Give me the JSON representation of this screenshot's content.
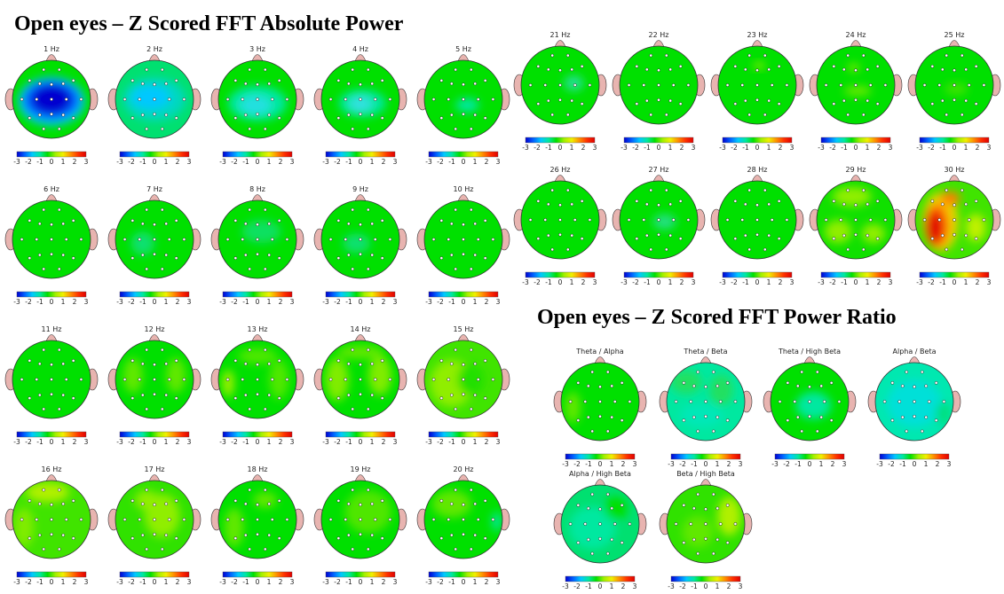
{
  "titles": {
    "absolute": "Open eyes – Z Scored FFT Absolute Power",
    "ratio": "Open eyes – Z Scored FFT Power Ratio"
  },
  "colorbar": {
    "ticks": [
      "-3",
      "-2",
      "-1",
      "0",
      "1",
      "2",
      "3"
    ],
    "range": [
      -3,
      3
    ],
    "stops": [
      "#0000d0",
      "#0060ff",
      "#00c8ff",
      "#00e8a0",
      "#00e000",
      "#a0f000",
      "#f0f000",
      "#ff9000",
      "#ff3000",
      "#e00000"
    ]
  },
  "maps": [
    {
      "label": "1 Hz",
      "base": "#00e000",
      "blobs": [
        {
          "dx": 0,
          "dy": 0.05,
          "rx": 0.85,
          "ry": 0.62,
          "color": "#00c8ff",
          "op": 1
        },
        {
          "dx": 0,
          "dy": 0.02,
          "rx": 0.72,
          "ry": 0.5,
          "color": "#0060ff",
          "op": 1
        },
        {
          "dx": 0,
          "dy": 0.0,
          "rx": 0.52,
          "ry": 0.38,
          "color": "#0000d0",
          "op": 1
        }
      ]
    },
    {
      "label": "2 Hz",
      "base": "#00e070",
      "blobs": [
        {
          "dx": 0,
          "dy": 0.0,
          "rx": 0.8,
          "ry": 0.55,
          "color": "#00d8c0",
          "op": 1
        },
        {
          "dx": -0.1,
          "dy": -0.05,
          "rx": 0.5,
          "ry": 0.3,
          "color": "#00c8ff",
          "op": 1
        }
      ]
    },
    {
      "label": "3 Hz",
      "base": "#00e000",
      "blobs": [
        {
          "dx": 0,
          "dy": 0.1,
          "rx": 0.75,
          "ry": 0.45,
          "color": "#00e8a0",
          "op": 1
        },
        {
          "dx": -0.05,
          "dy": 0.15,
          "rx": 0.4,
          "ry": 0.25,
          "color": "#20e0e0",
          "op": 1
        }
      ]
    },
    {
      "label": "4 Hz",
      "base": "#00e000",
      "blobs": [
        {
          "dx": 0.05,
          "dy": 0.1,
          "rx": 0.6,
          "ry": 0.35,
          "color": "#00e8a0",
          "op": 1
        },
        {
          "dx": 0.0,
          "dy": 0.12,
          "rx": 0.28,
          "ry": 0.2,
          "color": "#30e0e0",
          "op": 1
        }
      ]
    },
    {
      "label": "5 Hz",
      "base": "#00e000",
      "blobs": [
        {
          "dx": 0.1,
          "dy": 0.15,
          "rx": 0.3,
          "ry": 0.18,
          "color": "#00e8a0",
          "op": 1
        }
      ]
    },
    {
      "label": "6 Hz",
      "base": "#00e000",
      "blobs": []
    },
    {
      "label": "7 Hz",
      "base": "#00e000",
      "blobs": [
        {
          "dx": -0.3,
          "dy": 0.1,
          "rx": 0.3,
          "ry": 0.3,
          "color": "#10e070",
          "op": 1
        }
      ]
    },
    {
      "label": "8 Hz",
      "base": "#00e000",
      "blobs": [
        {
          "dx": 0.1,
          "dy": -0.2,
          "rx": 0.5,
          "ry": 0.3,
          "color": "#10e060",
          "op": 1
        }
      ]
    },
    {
      "label": "9 Hz",
      "base": "#00e000",
      "blobs": [
        {
          "dx": -0.1,
          "dy": 0.1,
          "rx": 0.35,
          "ry": 0.25,
          "color": "#10e070",
          "op": 1
        }
      ]
    },
    {
      "label": "10 Hz",
      "base": "#00e000",
      "blobs": []
    },
    {
      "label": "11 Hz",
      "base": "#00e000",
      "blobs": []
    },
    {
      "label": "12 Hz",
      "base": "#00e000",
      "blobs": [
        {
          "dx": -0.55,
          "dy": -0.1,
          "rx": 0.25,
          "ry": 0.45,
          "color": "#60e800",
          "op": 1
        },
        {
          "dx": 0.55,
          "dy": -0.1,
          "rx": 0.25,
          "ry": 0.45,
          "color": "#60e800",
          "op": 1
        }
      ]
    },
    {
      "label": "13 Hz",
      "base": "#00e000",
      "blobs": [
        {
          "dx": -0.75,
          "dy": 0.1,
          "rx": 0.15,
          "ry": 0.35,
          "color": "#a0f000",
          "op": 1
        },
        {
          "dx": 0.55,
          "dy": 0.0,
          "rx": 0.25,
          "ry": 0.5,
          "color": "#50e800",
          "op": 1
        },
        {
          "dx": 0.0,
          "dy": -0.6,
          "rx": 0.5,
          "ry": 0.2,
          "color": "#50e800",
          "op": 1
        }
      ]
    },
    {
      "label": "14 Hz",
      "base": "#00e000",
      "blobs": [
        {
          "dx": -0.6,
          "dy": 0.0,
          "rx": 0.3,
          "ry": 0.55,
          "color": "#80ec00",
          "op": 1
        },
        {
          "dx": 0.5,
          "dy": -0.1,
          "rx": 0.3,
          "ry": 0.5,
          "color": "#80ec00",
          "op": 1
        },
        {
          "dx": 0.0,
          "dy": -0.7,
          "rx": 0.6,
          "ry": 0.18,
          "color": "#60e800",
          "op": 1
        }
      ]
    },
    {
      "label": "15 Hz",
      "base": "#40e400",
      "blobs": [
        {
          "dx": -0.3,
          "dy": 0.1,
          "rx": 0.55,
          "ry": 0.6,
          "color": "#90ee00",
          "op": 1
        },
        {
          "dx": 0.2,
          "dy": 0.0,
          "rx": 0.35,
          "ry": 0.4,
          "color": "#20e000",
          "op": 1
        }
      ]
    },
    {
      "label": "16 Hz",
      "base": "#40e400",
      "blobs": [
        {
          "dx": -0.1,
          "dy": -0.7,
          "rx": 0.55,
          "ry": 0.25,
          "color": "#b0f000",
          "op": 1
        },
        {
          "dx": -0.7,
          "dy": 0.2,
          "rx": 0.25,
          "ry": 0.5,
          "color": "#80ec00",
          "op": 1
        }
      ]
    },
    {
      "label": "17 Hz",
      "base": "#30e200",
      "blobs": [
        {
          "dx": 0.2,
          "dy": -0.1,
          "rx": 0.45,
          "ry": 0.55,
          "color": "#90ee00",
          "op": 1
        },
        {
          "dx": -0.2,
          "dy": -0.5,
          "rx": 0.3,
          "ry": 0.25,
          "color": "#90ee00",
          "op": 1
        }
      ]
    },
    {
      "label": "18 Hz",
      "base": "#00e000",
      "blobs": [
        {
          "dx": -0.6,
          "dy": 0.2,
          "rx": 0.25,
          "ry": 0.5,
          "color": "#60e800",
          "op": 1
        },
        {
          "dx": 0.2,
          "dy": -0.5,
          "rx": 0.3,
          "ry": 0.2,
          "color": "#60e800",
          "op": 1
        }
      ]
    },
    {
      "label": "19 Hz",
      "base": "#00e000",
      "blobs": [
        {
          "dx": 0.2,
          "dy": -0.2,
          "rx": 0.6,
          "ry": 0.55,
          "color": "#50e600",
          "op": 1
        }
      ]
    },
    {
      "label": "20 Hz",
      "base": "#00e000",
      "blobs": [
        {
          "dx": -0.3,
          "dy": -0.4,
          "rx": 0.5,
          "ry": 0.35,
          "color": "#60e800",
          "op": 1
        },
        {
          "dx": 0.85,
          "dy": 0.05,
          "rx": 0.12,
          "ry": 0.25,
          "color": "#00e8a0",
          "op": 1
        }
      ]
    },
    {
      "label": "21 Hz",
      "base": "#00e000",
      "blobs": [
        {
          "dx": 0.35,
          "dy": -0.05,
          "rx": 0.25,
          "ry": 0.2,
          "color": "#20e090",
          "op": 1
        }
      ]
    },
    {
      "label": "22 Hz",
      "base": "#00e000",
      "blobs": []
    },
    {
      "label": "23 Hz",
      "base": "#00e000",
      "blobs": [
        {
          "dx": 0.05,
          "dy": -0.5,
          "rx": 0.15,
          "ry": 0.1,
          "color": "#80ec00",
          "op": 1
        }
      ]
    },
    {
      "label": "24 Hz",
      "base": "#00e000",
      "blobs": [
        {
          "dx": -0.05,
          "dy": -0.45,
          "rx": 0.15,
          "ry": 0.1,
          "color": "#80ec00",
          "op": 1
        },
        {
          "dx": 0.05,
          "dy": 0.15,
          "rx": 0.35,
          "ry": 0.12,
          "color": "#70ea00",
          "op": 1
        }
      ]
    },
    {
      "label": "25 Hz",
      "base": "#00e000",
      "blobs": [
        {
          "dx": 0.05,
          "dy": 0.1,
          "rx": 0.3,
          "ry": 0.15,
          "color": "#40e400",
          "op": 1
        }
      ]
    },
    {
      "label": "26 Hz",
      "base": "#00e000",
      "blobs": []
    },
    {
      "label": "27 Hz",
      "base": "#00e000",
      "blobs": [
        {
          "dx": 0.15,
          "dy": 0.05,
          "rx": 0.3,
          "ry": 0.2,
          "color": "#20e080",
          "op": 1
        }
      ]
    },
    {
      "label": "28 Hz",
      "base": "#00e000",
      "blobs": []
    },
    {
      "label": "29 Hz",
      "base": "#10e000",
      "blobs": [
        {
          "dx": -0.1,
          "dy": -0.6,
          "rx": 0.5,
          "ry": 0.25,
          "color": "#90ee00",
          "op": 1
        },
        {
          "dx": -0.45,
          "dy": 0.3,
          "rx": 0.35,
          "ry": 0.3,
          "color": "#90ee00",
          "op": 1
        },
        {
          "dx": 0.45,
          "dy": 0.35,
          "rx": 0.3,
          "ry": 0.25,
          "color": "#90ee00",
          "op": 1
        }
      ]
    },
    {
      "label": "30 Hz",
      "base": "#40e400",
      "blobs": [
        {
          "dx": -0.35,
          "dy": 0.05,
          "rx": 0.45,
          "ry": 0.75,
          "color": "#f0d000",
          "op": 1
        },
        {
          "dx": -0.45,
          "dy": 0.15,
          "rx": 0.3,
          "ry": 0.55,
          "color": "#ff6000",
          "op": 1
        },
        {
          "dx": -0.5,
          "dy": 0.2,
          "rx": 0.2,
          "ry": 0.4,
          "color": "#e00000",
          "op": 1
        },
        {
          "dx": 0.55,
          "dy": 0.2,
          "rx": 0.25,
          "ry": 0.35,
          "color": "#c0f000",
          "op": 1
        },
        {
          "dx": -0.1,
          "dy": -0.55,
          "rx": 0.25,
          "ry": 0.18,
          "color": "#ff8000",
          "op": 1
        }
      ]
    },
    {
      "label": "Theta / Alpha",
      "base": "#00e000",
      "blobs": [
        {
          "dx": -0.7,
          "dy": 0.15,
          "rx": 0.2,
          "ry": 0.4,
          "color": "#60e800",
          "op": 1
        }
      ]
    },
    {
      "label": "Theta / Beta",
      "base": "#00e8a0",
      "blobs": [
        {
          "dx": -0.5,
          "dy": -0.5,
          "rx": 0.4,
          "ry": 0.3,
          "color": "#20e060",
          "op": 1
        },
        {
          "dx": 0.4,
          "dy": -0.3,
          "rx": 0.3,
          "ry": 0.4,
          "color": "#20e060",
          "op": 1
        },
        {
          "dx": -0.1,
          "dy": 0.35,
          "rx": 0.55,
          "ry": 0.3,
          "color": "#00e8b8",
          "op": 1
        }
      ]
    },
    {
      "label": "Theta / High Beta",
      "base": "#00e000",
      "blobs": [
        {
          "dx": 0.1,
          "dy": 0.1,
          "rx": 0.45,
          "ry": 0.35,
          "color": "#00e8a0",
          "op": 1
        }
      ]
    },
    {
      "label": "Alpha / Beta",
      "base": "#00e8b0",
      "blobs": [
        {
          "dx": 0.0,
          "dy": 0.05,
          "rx": 0.7,
          "ry": 0.6,
          "color": "#00e0d8",
          "op": 1
        },
        {
          "dx": 0.75,
          "dy": 0.3,
          "rx": 0.2,
          "ry": 0.3,
          "color": "#00e080",
          "op": 1
        }
      ]
    },
    {
      "label": "Alpha / High Beta",
      "base": "#00e070",
      "blobs": [
        {
          "dx": -0.2,
          "dy": 0.1,
          "rx": 0.6,
          "ry": 0.55,
          "color": "#00e8a0",
          "op": 1
        },
        {
          "dx": 0.4,
          "dy": -0.4,
          "rx": 0.3,
          "ry": 0.3,
          "color": "#00e000",
          "op": 1
        }
      ]
    },
    {
      "label": "Beta / High Beta",
      "base": "#30e200",
      "blobs": [
        {
          "dx": 0.6,
          "dy": -0.2,
          "rx": 0.3,
          "ry": 0.5,
          "color": "#b0f000",
          "op": 1
        },
        {
          "dx": -0.2,
          "dy": 0.2,
          "rx": 0.4,
          "ry": 0.4,
          "color": "#60e800",
          "op": 1
        }
      ]
    }
  ]
}
